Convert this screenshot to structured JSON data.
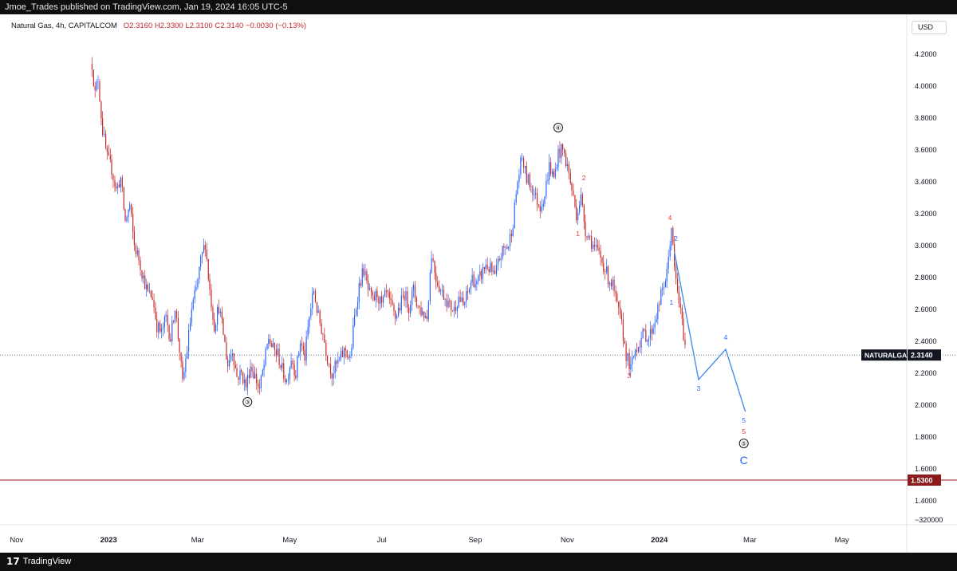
{
  "header": {
    "publish_line": "Jmoe_Trades published on TradingView.com, Jan 19, 2024 16:05 UTC-5"
  },
  "symbol_line": {
    "name": "Natural Gas, 4h, CAPITALCOM",
    "ohlc": "O2.3160  H2.3300  L2.3100  C2.3140  −0.0030 (−0.13%)"
  },
  "currency_button": "USD",
  "footer": {
    "brand": "TradingView"
  },
  "chart_data": {
    "type": "candlestick",
    "symbol": "NATURALGAS",
    "interval": "4h",
    "exchange": "CAPITALCOM",
    "y_axis": {
      "ticks": [
        "4.2000",
        "4.0000",
        "3.8000",
        "3.6000",
        "3.4000",
        "3.2000",
        "3.0000",
        "2.8000",
        "2.6000",
        "2.4000",
        "2.2000",
        "2.0000",
        "1.8000",
        "1.6000",
        "1.4000"
      ],
      "bottom_label": "−320000",
      "ylim": [
        1.25,
        4.45
      ]
    },
    "x_axis": {
      "labels": [
        {
          "text": "Nov",
          "date": "2022-11-01"
        },
        {
          "text": "2023",
          "date": "2023-01-01"
        },
        {
          "text": "Mar",
          "date": "2023-03-01"
        },
        {
          "text": "May",
          "date": "2023-05-01"
        },
        {
          "text": "Jul",
          "date": "2023-07-01"
        },
        {
          "text": "Sep",
          "date": "2023-09-01"
        },
        {
          "text": "Nov",
          "date": "2023-11-01"
        },
        {
          "text": "2024",
          "date": "2024-01-01"
        },
        {
          "text": "Mar",
          "date": "2024-03-01"
        },
        {
          "text": "May",
          "date": "2024-05-01"
        }
      ],
      "xlim": [
        "2022-10-21",
        "2024-06-13"
      ]
    },
    "price_path": [
      [
        "2022-12-21",
        4.14
      ],
      [
        "2022-12-23",
        3.95
      ],
      [
        "2022-12-25",
        4.05
      ],
      [
        "2022-12-28",
        3.72
      ],
      [
        "2022-12-31",
        3.55
      ],
      [
        "2023-01-03",
        3.48
      ],
      [
        "2023-01-06",
        3.35
      ],
      [
        "2023-01-09",
        3.42
      ],
      [
        "2023-01-12",
        3.15
      ],
      [
        "2023-01-15",
        3.25
      ],
      [
        "2023-01-18",
        3.0
      ],
      [
        "2023-01-21",
        2.92
      ],
      [
        "2023-01-24",
        2.8
      ],
      [
        "2023-01-27",
        2.7
      ],
      [
        "2023-01-30",
        2.68
      ],
      [
        "2023-02-02",
        2.5
      ],
      [
        "2023-02-05",
        2.45
      ],
      [
        "2023-02-08",
        2.55
      ],
      [
        "2023-02-11",
        2.42
      ],
      [
        "2023-02-14",
        2.62
      ],
      [
        "2023-02-17",
        2.35
      ],
      [
        "2023-02-19",
        2.13
      ],
      [
        "2023-02-22",
        2.35
      ],
      [
        "2023-02-25",
        2.6
      ],
      [
        "2023-02-28",
        2.72
      ],
      [
        "2023-03-03",
        2.9
      ],
      [
        "2023-03-06",
        3.02
      ],
      [
        "2023-03-09",
        2.72
      ],
      [
        "2023-03-12",
        2.5
      ],
      [
        "2023-03-15",
        2.62
      ],
      [
        "2023-03-18",
        2.45
      ],
      [
        "2023-03-21",
        2.25
      ],
      [
        "2023-03-24",
        2.35
      ],
      [
        "2023-03-27",
        2.18
      ],
      [
        "2023-03-30",
        2.2
      ],
      [
        "2023-04-02",
        2.12
      ],
      [
        "2023-04-05",
        2.25
      ],
      [
        "2023-04-08",
        2.18
      ],
      [
        "2023-04-11",
        2.1
      ],
      [
        "2023-04-14",
        2.25
      ],
      [
        "2023-04-17",
        2.42
      ],
      [
        "2023-04-20",
        2.35
      ],
      [
        "2023-04-23",
        2.32
      ],
      [
        "2023-04-26",
        2.22
      ],
      [
        "2023-04-29",
        2.15
      ],
      [
        "2023-05-02",
        2.3
      ],
      [
        "2023-05-05",
        2.2
      ],
      [
        "2023-05-08",
        2.4
      ],
      [
        "2023-05-11",
        2.3
      ],
      [
        "2023-05-14",
        2.55
      ],
      [
        "2023-05-17",
        2.72
      ],
      [
        "2023-05-20",
        2.55
      ],
      [
        "2023-05-23",
        2.45
      ],
      [
        "2023-05-26",
        2.3
      ],
      [
        "2023-05-29",
        2.2
      ],
      [
        "2023-06-01",
        2.25
      ],
      [
        "2023-06-04",
        2.3
      ],
      [
        "2023-06-07",
        2.35
      ],
      [
        "2023-06-10",
        2.28
      ],
      [
        "2023-06-13",
        2.55
      ],
      [
        "2023-06-16",
        2.75
      ],
      [
        "2023-06-19",
        2.85
      ],
      [
        "2023-06-22",
        2.72
      ],
      [
        "2023-06-25",
        2.65
      ],
      [
        "2023-06-28",
        2.7
      ],
      [
        "2023-07-01",
        2.62
      ],
      [
        "2023-07-04",
        2.7
      ],
      [
        "2023-07-07",
        2.62
      ],
      [
        "2023-07-10",
        2.55
      ],
      [
        "2023-07-13",
        2.62
      ],
      [
        "2023-07-16",
        2.7
      ],
      [
        "2023-07-19",
        2.62
      ],
      [
        "2023-07-22",
        2.72
      ],
      [
        "2023-07-25",
        2.62
      ],
      [
        "2023-07-28",
        2.58
      ],
      [
        "2023-07-31",
        2.55
      ],
      [
        "2023-08-03",
        2.95
      ],
      [
        "2023-08-06",
        2.8
      ],
      [
        "2023-08-09",
        2.72
      ],
      [
        "2023-08-12",
        2.68
      ],
      [
        "2023-08-15",
        2.62
      ],
      [
        "2023-08-18",
        2.6
      ],
      [
        "2023-08-21",
        2.68
      ],
      [
        "2023-08-24",
        2.62
      ],
      [
        "2023-08-27",
        2.7
      ],
      [
        "2023-08-30",
        2.8
      ],
      [
        "2023-09-02",
        2.75
      ],
      [
        "2023-09-05",
        2.82
      ],
      [
        "2023-09-08",
        2.88
      ],
      [
        "2023-09-11",
        2.85
      ],
      [
        "2023-09-14",
        2.8
      ],
      [
        "2023-09-17",
        2.92
      ],
      [
        "2023-09-20",
        2.98
      ],
      [
        "2023-09-23",
        3.0
      ],
      [
        "2023-09-26",
        3.15
      ],
      [
        "2023-09-29",
        3.4
      ],
      [
        "2023-10-02",
        3.55
      ],
      [
        "2023-10-05",
        3.42
      ],
      [
        "2023-10-08",
        3.38
      ],
      [
        "2023-10-11",
        3.3
      ],
      [
        "2023-10-14",
        3.25
      ],
      [
        "2023-10-17",
        3.32
      ],
      [
        "2023-10-20",
        3.5
      ],
      [
        "2023-10-23",
        3.42
      ],
      [
        "2023-10-26",
        3.58
      ],
      [
        "2023-10-29",
        3.6
      ],
      [
        "2023-11-01",
        3.5
      ],
      [
        "2023-11-04",
        3.35
      ],
      [
        "2023-11-07",
        3.2
      ],
      [
        "2023-11-10",
        3.3
      ],
      [
        "2023-11-13",
        3.1
      ],
      [
        "2023-11-16",
        3.05
      ],
      [
        "2023-11-19",
        2.98
      ],
      [
        "2023-11-22",
        2.95
      ],
      [
        "2023-11-25",
        2.88
      ],
      [
        "2023-11-28",
        2.8
      ],
      [
        "2023-12-01",
        2.75
      ],
      [
        "2023-12-04",
        2.62
      ],
      [
        "2023-12-07",
        2.5
      ],
      [
        "2023-12-10",
        2.32
      ],
      [
        "2023-12-13",
        2.22
      ],
      [
        "2023-12-16",
        2.35
      ],
      [
        "2023-12-19",
        2.4
      ],
      [
        "2023-12-22",
        2.45
      ],
      [
        "2023-12-25",
        2.42
      ],
      [
        "2023-12-28",
        2.5
      ],
      [
        "2023-12-31",
        2.6
      ],
      [
        "2024-01-03",
        2.72
      ],
      [
        "2024-01-06",
        2.82
      ],
      [
        "2024-01-09",
        3.12
      ],
      [
        "2024-01-11",
        2.85
      ],
      [
        "2024-01-14",
        2.65
      ],
      [
        "2024-01-17",
        2.45
      ],
      [
        "2024-01-19",
        2.314
      ]
    ],
    "projection": [
      {
        "date": "2024-01-11",
        "price": 2.96
      },
      {
        "date": "2024-01-27",
        "price": 2.16
      },
      {
        "date": "2024-02-14",
        "price": 2.35
      },
      {
        "date": "2024-02-27",
        "price": 1.96
      }
    ],
    "wave_labels": [
      {
        "text": "③",
        "date": "2023-04-03",
        "price": 2.0,
        "style": "circle"
      },
      {
        "text": "④",
        "date": "2023-10-26",
        "price": 3.72,
        "style": "circle"
      },
      {
        "text": "⑤",
        "date": "2024-02-26",
        "price": 1.74,
        "style": "circle"
      },
      {
        "text": "C",
        "date": "2024-02-26",
        "price": 1.63,
        "style": "big-blue"
      },
      {
        "text": "1",
        "date": "2023-11-08",
        "price": 3.06,
        "style": "red"
      },
      {
        "text": "2",
        "date": "2023-11-12",
        "price": 3.41,
        "style": "red"
      },
      {
        "text": "3",
        "date": "2023-12-12",
        "price": 2.17,
        "style": "red"
      },
      {
        "text": "4",
        "date": "2024-01-08",
        "price": 3.16,
        "style": "red"
      },
      {
        "text": "5",
        "date": "2024-02-26",
        "price": 1.82,
        "style": "red"
      },
      {
        "text": "1",
        "date": "2024-01-09",
        "price": 2.63,
        "style": "blue"
      },
      {
        "text": "2",
        "date": "2024-01-12",
        "price": 3.03,
        "style": "blue"
      },
      {
        "text": "3",
        "date": "2024-01-27",
        "price": 2.09,
        "style": "blue"
      },
      {
        "text": "4",
        "date": "2024-02-14",
        "price": 2.41,
        "style": "blue"
      },
      {
        "text": "5",
        "date": "2024-02-26",
        "price": 1.89,
        "style": "blue"
      }
    ],
    "horizontal_lines": [
      {
        "price": 2.314,
        "label": "NATURALGAS",
        "value": "2.3140",
        "style": "dotted",
        "color": "#787b86"
      },
      {
        "price": 1.53,
        "value": "1.5300",
        "style": "solid",
        "color": "#8b1a1a"
      }
    ],
    "colors": {
      "up": "#2962ff",
      "down": "#c62828",
      "projection": "#4a8cf0",
      "wave_red": "#e53935",
      "wave_blue": "#2962ff"
    },
    "grid": false
  }
}
